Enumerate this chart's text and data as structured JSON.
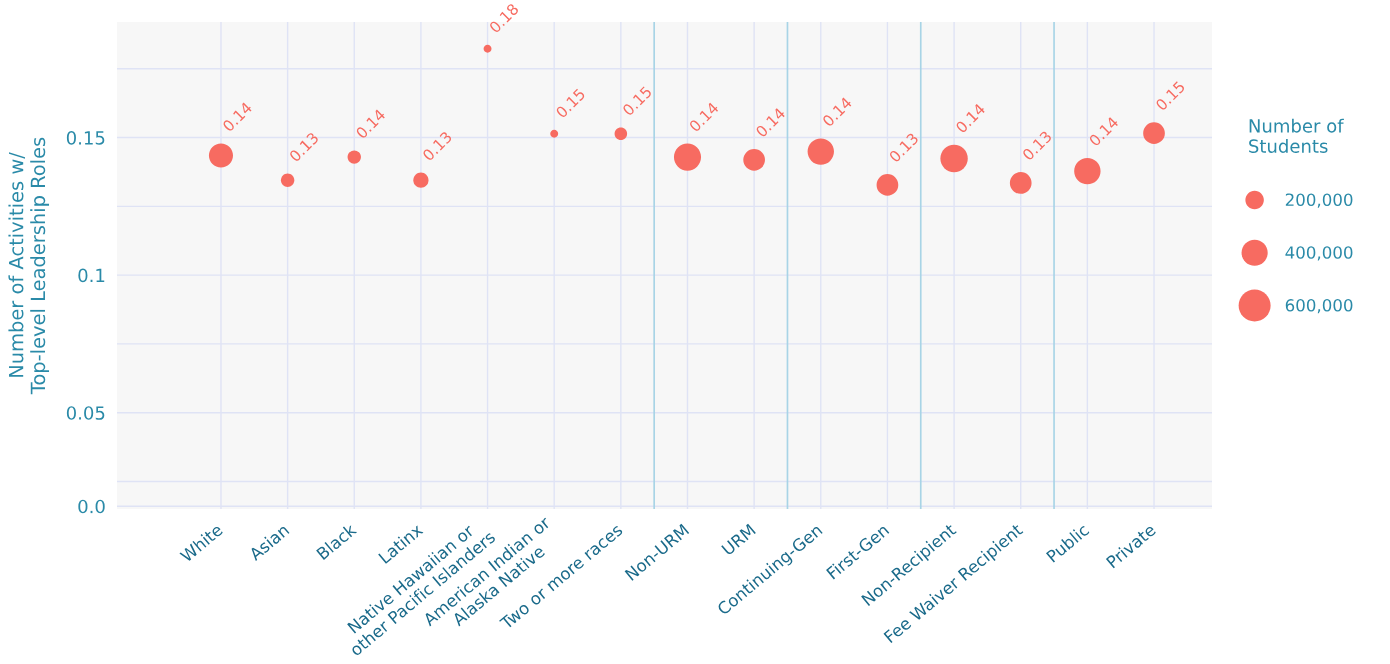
{
  "chart_data": {
    "type": "bubble",
    "ylabel": "Number of Activities w/\nTop-level Leadership Roles",
    "legend_title": "Number of\nStudents",
    "categories": [
      "White",
      "Asian",
      "Black",
      "Latinx",
      "Native Hawaiian or\nother Pacific Islanders",
      "American Indian or\nAlaska Native",
      "Two or more races",
      "Non-URM",
      "URM",
      "Continuing-Gen",
      "First-Gen",
      "Non-Recipient",
      "Fee Waiver Recipient",
      "Public",
      "Private"
    ],
    "values": [
      0.1435,
      0.1345,
      0.1429,
      0.1345,
      0.1823,
      0.1514,
      0.1514,
      0.1429,
      0.1419,
      0.1449,
      0.1328,
      0.1424,
      0.1335,
      0.1378,
      0.1516
    ],
    "value_labels": [
      "0.14",
      "0.13",
      "0.14",
      "0.13",
      "0.18",
      "0.15",
      "0.15",
      "0.14",
      "0.14",
      "0.14",
      "0.13",
      "0.14",
      "0.13",
      "0.14",
      "0.15"
    ],
    "sizes": [
      340000,
      105000,
      105000,
      135000,
      37000,
      37000,
      92000,
      430000,
      276000,
      408000,
      276000,
      440000,
      276000,
      408000,
      276000
    ],
    "size_legend": [
      {
        "value": 200000,
        "label": "200,000"
      },
      {
        "value": 400000,
        "label": "400,000"
      },
      {
        "value": 600000,
        "label": "600,000"
      }
    ],
    "color": "#f76b61",
    "ylim": [
      0.015,
      0.192
    ],
    "yticks": [
      {
        "value": 0.016,
        "label": "0.0"
      },
      {
        "value": 0.025,
        "label": null
      },
      0.05,
      {
        "value": 0.075,
        "label": null
      },
      0.1,
      {
        "value": 0.125,
        "label": null
      },
      0.15,
      {
        "value": 0.175,
        "label": null
      }
    ],
    "grid": true
  }
}
